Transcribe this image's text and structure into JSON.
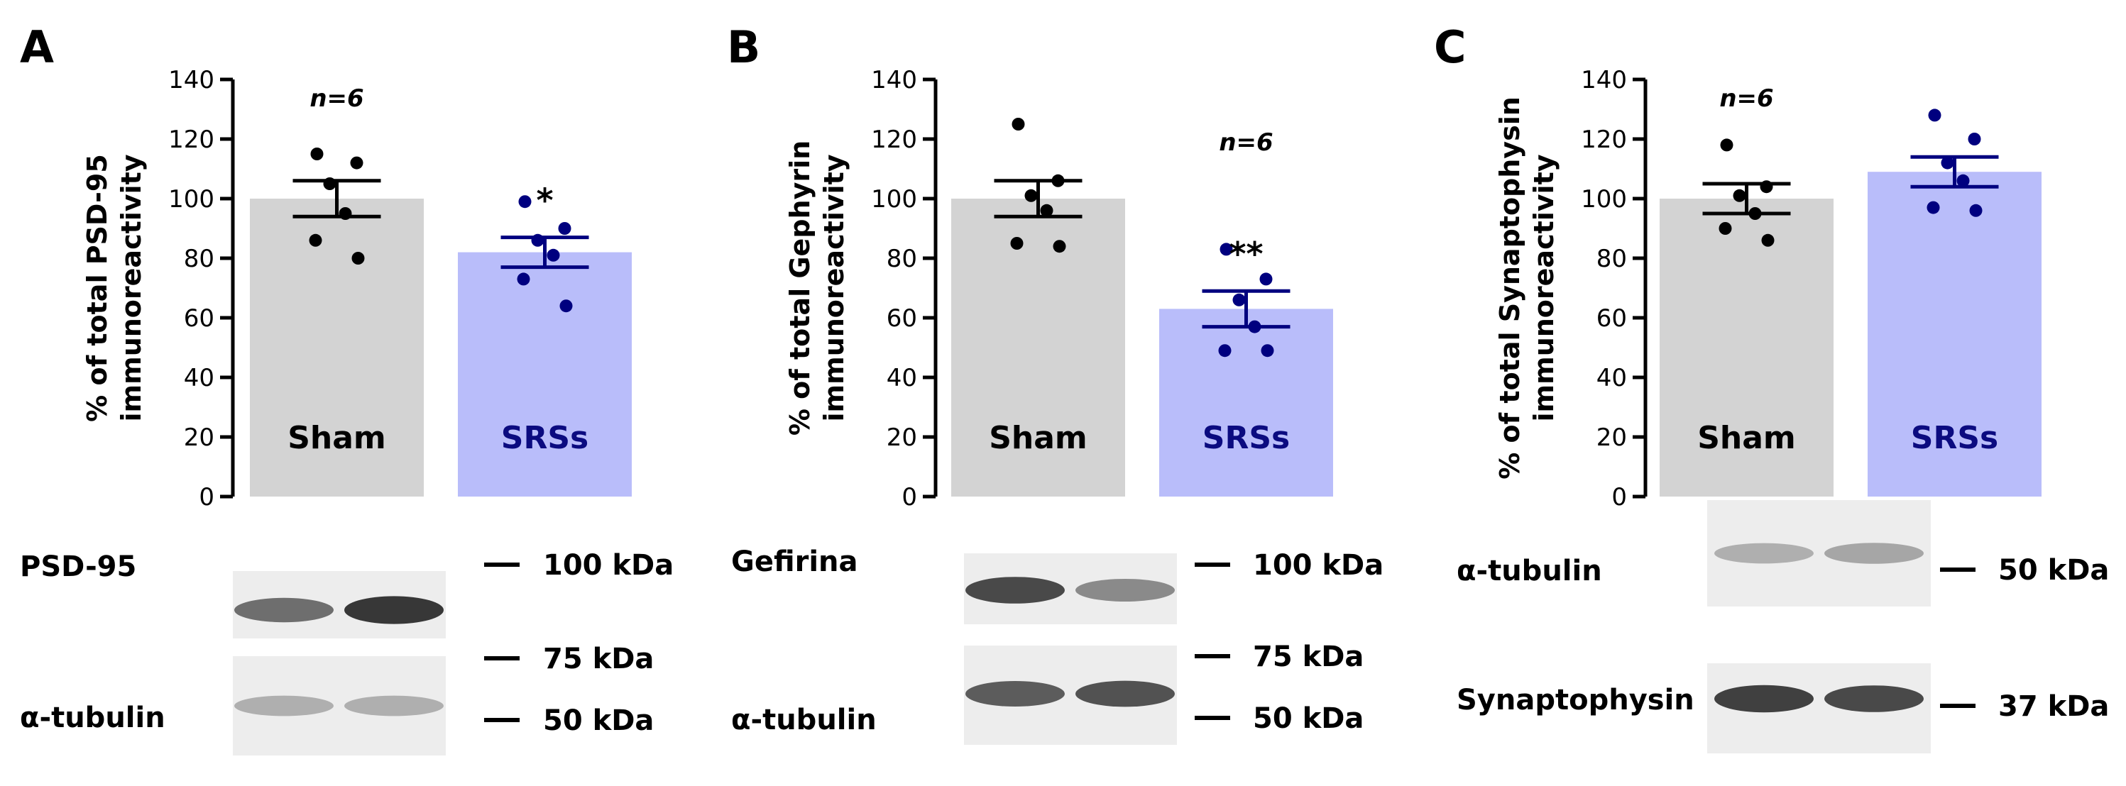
{
  "colors": {
    "sham_bar": "#d3d3d3",
    "srs_bar": "#b9bdfa",
    "sham_dot": "#000000",
    "srs_dot": "#00007f",
    "srs_label": "#0b0b80",
    "axis": "#000000"
  },
  "chart_data": [
    {
      "panel": "A",
      "type": "bar",
      "ylabel": [
        "% of total PSD-95",
        "immunoreactivity"
      ],
      "ylim": [
        0,
        140
      ],
      "yticks": [
        0,
        20,
        40,
        60,
        80,
        100,
        120,
        140
      ],
      "categories": [
        "Sham",
        "SRSs"
      ],
      "values": [
        100,
        82
      ],
      "sem": [
        6,
        5
      ],
      "points": [
        [
          115,
          112,
          105,
          95,
          86,
          80
        ],
        [
          99,
          90,
          86,
          81,
          73,
          64
        ]
      ],
      "n_label": "n=6",
      "n_label_over": 0,
      "significance": [
        "",
        "*"
      ]
    },
    {
      "panel": "B",
      "type": "bar",
      "ylabel": [
        "% of total Gephyrin",
        "immunoreactivity"
      ],
      "ylim": [
        0,
        140
      ],
      "yticks": [
        0,
        20,
        40,
        60,
        80,
        100,
        120,
        140
      ],
      "categories": [
        "Sham",
        "SRSs"
      ],
      "values": [
        100,
        63
      ],
      "sem": [
        6,
        6
      ],
      "points": [
        [
          125,
          106,
          101,
          96,
          85,
          84
        ],
        [
          83,
          73,
          66,
          57,
          49,
          49
        ]
      ],
      "n_label": "n=6",
      "n_label_over": 1,
      "significance": [
        "",
        "**"
      ]
    },
    {
      "panel": "C",
      "type": "bar",
      "ylabel": [
        "% of total Synaptophysin",
        "immunoreactivity"
      ],
      "ylim": [
        0,
        140
      ],
      "yticks": [
        0,
        20,
        40,
        60,
        80,
        100,
        120,
        140
      ],
      "categories": [
        "Sham",
        "SRSs"
      ],
      "values": [
        100,
        109
      ],
      "sem": [
        5,
        5
      ],
      "points": [
        [
          118,
          104,
          101,
          95,
          90,
          86
        ],
        [
          128,
          120,
          112,
          106,
          97,
          96
        ]
      ],
      "n_label": "n=6",
      "n_label_over": 0,
      "significance": [
        "",
        ""
      ]
    }
  ],
  "blots": [
    {
      "panel": "A",
      "rows": [
        {
          "label": "PSD-95",
          "lane_intensity": [
            0.65,
            0.95
          ]
        },
        {
          "label": "α-tubulin",
          "lane_intensity": [
            0.3,
            0.3
          ]
        }
      ],
      "markers": [
        "100 kDa",
        "75 kDa",
        "50 kDa"
      ]
    },
    {
      "panel": "B",
      "rows": [
        {
          "label": "Gefirina",
          "lane_intensity": [
            0.85,
            0.5
          ]
        },
        {
          "label": "α-tubulin",
          "lane_intensity": [
            0.75,
            0.8
          ]
        }
      ],
      "markers": [
        "100 kDa",
        "75 kDa",
        "50 kDa"
      ]
    },
    {
      "panel": "C",
      "rows": [
        {
          "label": "α-tubulin",
          "lane_intensity": [
            0.3,
            0.35
          ]
        },
        {
          "label": "Synaptophysin",
          "lane_intensity": [
            0.9,
            0.85
          ]
        }
      ],
      "markers": [
        "50 kDa",
        "37 kDa"
      ]
    }
  ]
}
